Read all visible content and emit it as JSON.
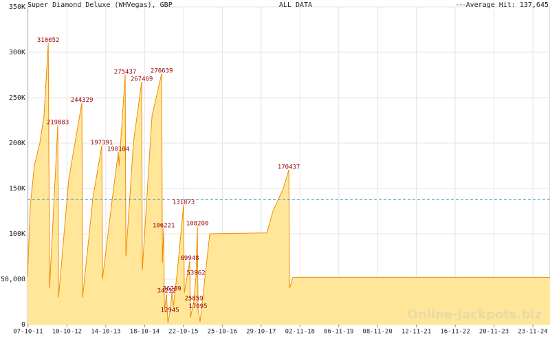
{
  "chart_data": {
    "type": "area",
    "title": "Super Diamond Deluxe (WHVegas), GBP",
    "subtitle": "ALL DATA",
    "watermark": "Online-Jackpots.biz",
    "average": {
      "value": 137645,
      "label": "Average Hit: 137,645"
    },
    "color": "#f08c00",
    "fill": "#ffe699",
    "average_color": "#3a8fc0",
    "label_color": "#990000",
    "grid": true,
    "xlim": [
      "2011-10-01",
      "2025-05-05"
    ],
    "ylim": [
      0,
      350000
    ],
    "yticks": [
      0,
      {
        "value": 50000,
        "label": "50,000"
      },
      {
        "value": 100000,
        "label": "100K"
      },
      {
        "value": 150000,
        "label": "150K"
      },
      {
        "value": 200000,
        "label": "200K"
      },
      {
        "value": 250000,
        "label": "250K"
      },
      {
        "value": 300000,
        "label": "300K"
      },
      {
        "value": 350000,
        "label": "350K"
      }
    ],
    "xticks": [
      {
        "value": "2011-10-07",
        "label": "07-10-11"
      },
      {
        "value": "2012-10-10",
        "label": "10-10-12"
      },
      {
        "value": "2013-10-14",
        "label": "14-10-13"
      },
      {
        "value": "2014-10-18",
        "label": "18-10-14"
      },
      {
        "value": "2015-10-22",
        "label": "22-10-15"
      },
      {
        "value": "2016-10-25",
        "label": "25-10-16"
      },
      {
        "value": "2017-10-29",
        "label": "29-10-17"
      },
      {
        "value": "2018-11-02",
        "label": "02-11-18"
      },
      {
        "value": "2019-11-06",
        "label": "06-11-19"
      },
      {
        "value": "2020-11-08",
        "label": "08-11-20"
      },
      {
        "value": "2021-11-12",
        "label": "12-11-21"
      },
      {
        "value": "2022-11-16",
        "label": "16-11-22"
      },
      {
        "value": "2023-11-20",
        "label": "20-11-23"
      },
      {
        "value": "2024-11-23",
        "label": "23-11-24"
      }
    ],
    "x": [
      "2011-10-01",
      "2011-10-27",
      "2011-12-05",
      "2012-01-26",
      "2012-03-06",
      "2012-04-15",
      "2012-04-28",
      "2012-07-15",
      "2012-07-22",
      "2012-10-27",
      "2013-03-01",
      "2013-03-08",
      "2013-06-14",
      "2013-09-06",
      "2013-09-13",
      "2013-12-26",
      "2014-02-10",
      "2014-02-17",
      "2014-04-16",
      "2014-04-23",
      "2014-07-03",
      "2014-09-20",
      "2014-09-26",
      "2014-12-27",
      "2015-03-29",
      "2015-04-05",
      "2015-04-18",
      "2015-04-24",
      "2015-05-14",
      "2015-05-27",
      "2015-06-15",
      "2015-07-05",
      "2015-07-18",
      "2015-08-26",
      "2015-10-23",
      "2015-10-30",
      "2015-12-21",
      "2015-12-28",
      "2016-01-29",
      "2016-02-18",
      "2016-03-02",
      "2016-03-08",
      "2016-03-28",
      "2016-04-23",
      "2016-06-28",
      "2017-12-22",
      "2018-02-19",
      "2018-05-28",
      "2018-07-19",
      "2018-07-26",
      "2018-08-27",
      "2025-05-05"
    ],
    "values": [
      52000,
      130000,
      175000,
      200000,
      230000,
      310052,
      40000,
      219883,
      30000,
      160000,
      244329,
      30000,
      140000,
      197391,
      50000,
      150000,
      190104,
      175000,
      275437,
      75000,
      200000,
      267469,
      60000,
      230000,
      276639,
      68000,
      106221,
      15000,
      34212,
      2000,
      12945,
      36289,
      20000,
      60000,
      131873,
      35000,
      69948,
      8000,
      25859,
      53962,
      108200,
      17095,
      3000,
      30000,
      100000,
      101000,
      125000,
      150000,
      170437,
      40000,
      52000,
      52000
    ],
    "value_labels": [
      null,
      null,
      null,
      null,
      null,
      "310052",
      null,
      "219883",
      null,
      null,
      "244329",
      null,
      null,
      "197391",
      null,
      null,
      "190104",
      null,
      "275437",
      null,
      null,
      "267469",
      null,
      null,
      "276639",
      null,
      "106221",
      null,
      "34212",
      null,
      "12945",
      "36289",
      null,
      null,
      "131873",
      null,
      "69948",
      null,
      "25859",
      "53962",
      "108200",
      "17095",
      null,
      null,
      null,
      null,
      null,
      null,
      "170437",
      null,
      null,
      null
    ]
  }
}
